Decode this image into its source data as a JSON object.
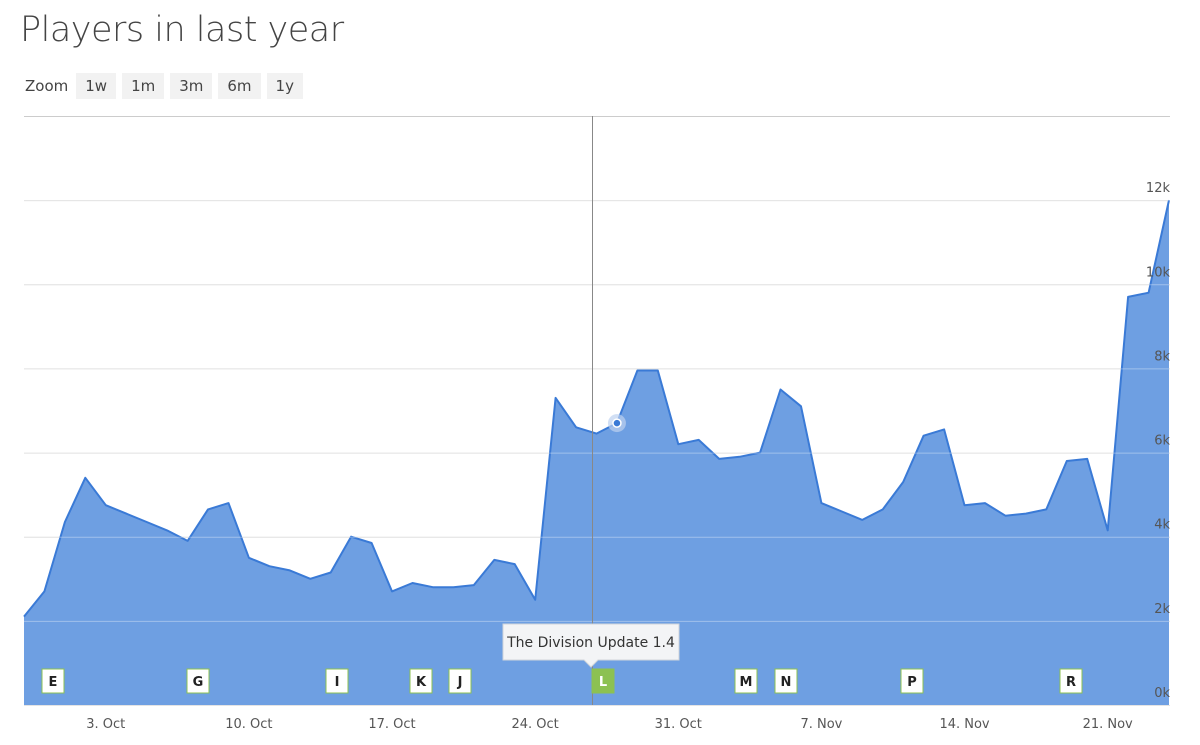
{
  "title": "Players in last year",
  "zoom": {
    "label": "Zoom",
    "buttons": [
      "1w",
      "1m",
      "3m",
      "6m",
      "1y"
    ]
  },
  "chart_data": {
    "type": "area",
    "categories": [
      null,
      null,
      null,
      null,
      "3. Oct",
      null,
      null,
      null,
      null,
      null,
      null,
      "10. Oct",
      null,
      null,
      null,
      null,
      null,
      null,
      "17. Oct",
      null,
      null,
      null,
      null,
      null,
      null,
      "24. Oct",
      null,
      null,
      null,
      null,
      null,
      null,
      "31. Oct",
      null,
      null,
      null,
      null,
      null,
      null,
      "7. Nov",
      null,
      null,
      null,
      null,
      null,
      null,
      "14. Nov",
      null,
      null,
      null,
      null,
      null,
      null,
      "21. Nov",
      null,
      null,
      null
    ],
    "values": [
      2100,
      2700,
      4350,
      5400,
      4750,
      4550,
      4350,
      4150,
      3900,
      4650,
      4800,
      3500,
      3300,
      3200,
      3000,
      3150,
      4000,
      3850,
      2700,
      2900,
      2800,
      2800,
      2850,
      3450,
      3350,
      2500,
      7300,
      6600,
      6450,
      6700,
      7950,
      7950,
      6200,
      6300,
      5850,
      5900,
      6000,
      7500,
      7100,
      4800,
      4600,
      4400,
      4650,
      5300,
      6400,
      6550,
      4750,
      4800,
      4500,
      4550,
      4650,
      5800,
      5850,
      4150,
      9700,
      9800,
      12000
    ],
    "color": "#6e9fe2",
    "ylim": [
      0,
      14000
    ],
    "yticks": [
      {
        "value": 0,
        "label": "0k"
      },
      {
        "value": 2000,
        "label": "2k"
      },
      {
        "value": 4000,
        "label": "4k"
      },
      {
        "value": 6000,
        "label": "6k"
      },
      {
        "value": 8000,
        "label": "8k"
      },
      {
        "value": 10000,
        "label": "10k"
      },
      {
        "value": 12000,
        "label": "12k"
      }
    ],
    "grid": true,
    "flags": [
      "E",
      "G",
      "I",
      "K",
      "J",
      "L",
      "M",
      "N",
      "P",
      "R"
    ],
    "tooltip": "The Division Update 1.4"
  }
}
